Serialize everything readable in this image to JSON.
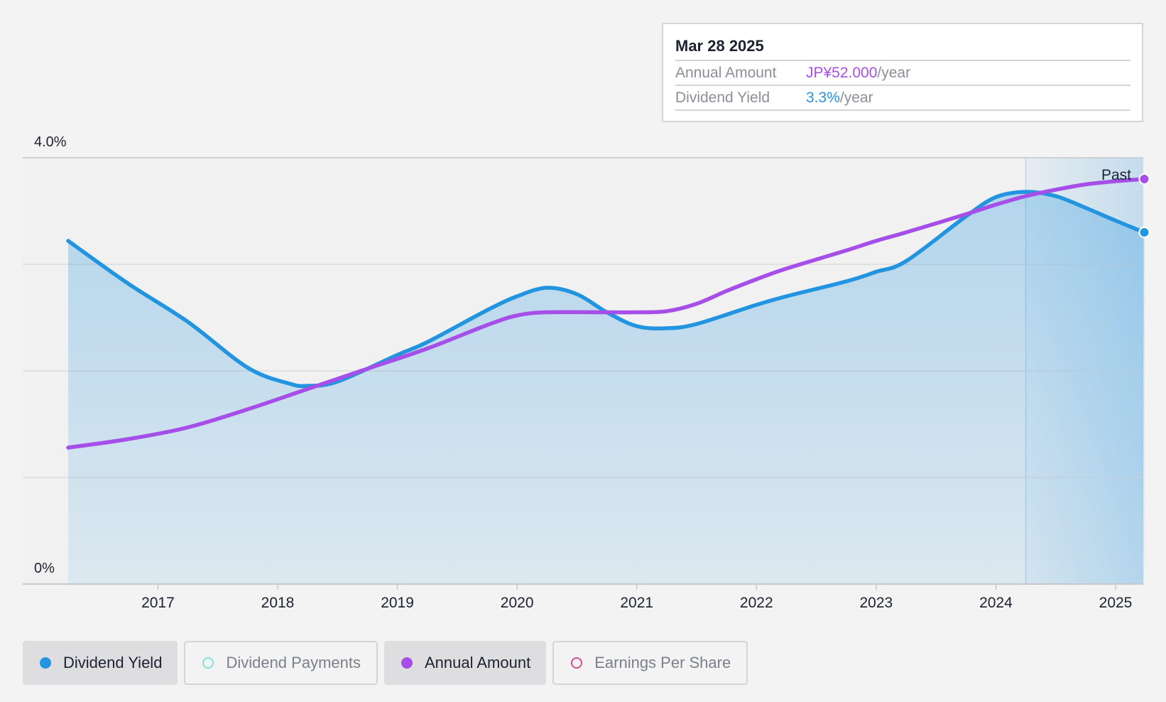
{
  "tooltip": {
    "date": "Mar 28 2025",
    "rows": [
      {
        "label": "Annual Amount",
        "value": "JP¥52.000",
        "suffix": "/year"
      },
      {
        "label": "Dividend Yield",
        "value": "3.3%",
        "suffix": "/year"
      }
    ]
  },
  "legend": [
    {
      "label": "Dividend Yield",
      "active": true,
      "color": "#2394e0",
      "filled": true
    },
    {
      "label": "Dividend Payments",
      "active": false,
      "color": "#7fe3d8",
      "filled": false
    },
    {
      "label": "Annual Amount",
      "active": true,
      "color": "#a64ee8",
      "filled": true
    },
    {
      "label": "Earnings Per Share",
      "active": false,
      "color": "#d0508e",
      "filled": false
    }
  ],
  "chart_data": {
    "type": "area",
    "x_range": [
      2016.1,
      2025.24
    ],
    "ylim": [
      0,
      4.0
    ],
    "y_tick_labels": [
      {
        "value": 4.0,
        "label": "4.0%"
      },
      {
        "value": 0,
        "label": "0%"
      }
    ],
    "gridlines": [
      1.0,
      2.0,
      3.0,
      4.0
    ],
    "x_ticks": [
      {
        "value": 2017,
        "label": "2017"
      },
      {
        "value": 2018,
        "label": "2018"
      },
      {
        "value": 2019,
        "label": "2019"
      },
      {
        "value": 2020,
        "label": "2020"
      },
      {
        "value": 2021,
        "label": "2021"
      },
      {
        "value": 2022,
        "label": "2022"
      },
      {
        "value": 2023,
        "label": "2023"
      },
      {
        "value": 2024,
        "label": "2024"
      },
      {
        "value": 2025,
        "label": "2025"
      }
    ],
    "past_region_start": 2024.25,
    "past_label": "Past",
    "series": [
      {
        "name": "Dividend Yield",
        "unit": "%",
        "color": "#2394e0",
        "filled_area": true,
        "x": [
          2016.25,
          2016.75,
          2017.25,
          2017.75,
          2018.1,
          2018.25,
          2018.5,
          2019.0,
          2019.25,
          2019.75,
          2020.0,
          2020.25,
          2020.5,
          2020.75,
          2021.0,
          2021.25,
          2021.5,
          2022.0,
          2022.25,
          2022.75,
          2023.0,
          2023.25,
          2023.75,
          2024.0,
          2024.25,
          2024.5,
          2024.75,
          2025.0,
          2025.24
        ],
        "values": [
          3.22,
          2.82,
          2.46,
          2.03,
          1.88,
          1.86,
          1.9,
          2.15,
          2.27,
          2.57,
          2.7,
          2.78,
          2.72,
          2.55,
          2.42,
          2.4,
          2.44,
          2.62,
          2.7,
          2.84,
          2.93,
          3.03,
          3.45,
          3.63,
          3.68,
          3.64,
          3.53,
          3.41,
          3.3
        ]
      },
      {
        "name": "Annual Amount",
        "unit": "JP¥",
        "color": "#a64ee8",
        "filled_area": false,
        "x": [
          2016.25,
          2016.75,
          2017.25,
          2017.75,
          2018.25,
          2018.75,
          2019.25,
          2019.75,
          2020.0,
          2020.25,
          2020.75,
          2021.0,
          2021.25,
          2021.5,
          2021.75,
          2022.0,
          2022.25,
          2022.75,
          2023.0,
          2023.25,
          2023.75,
          2024.0,
          2024.25,
          2024.5,
          2024.75,
          2025.0,
          2025.24
        ],
        "values": [
          1.28,
          1.36,
          1.47,
          1.64,
          1.83,
          2.02,
          2.21,
          2.43,
          2.52,
          2.55,
          2.55,
          2.55,
          2.56,
          2.63,
          2.75,
          2.86,
          2.96,
          3.13,
          3.22,
          3.3,
          3.47,
          3.56,
          3.64,
          3.7,
          3.75,
          3.78,
          3.8
        ]
      }
    ]
  }
}
